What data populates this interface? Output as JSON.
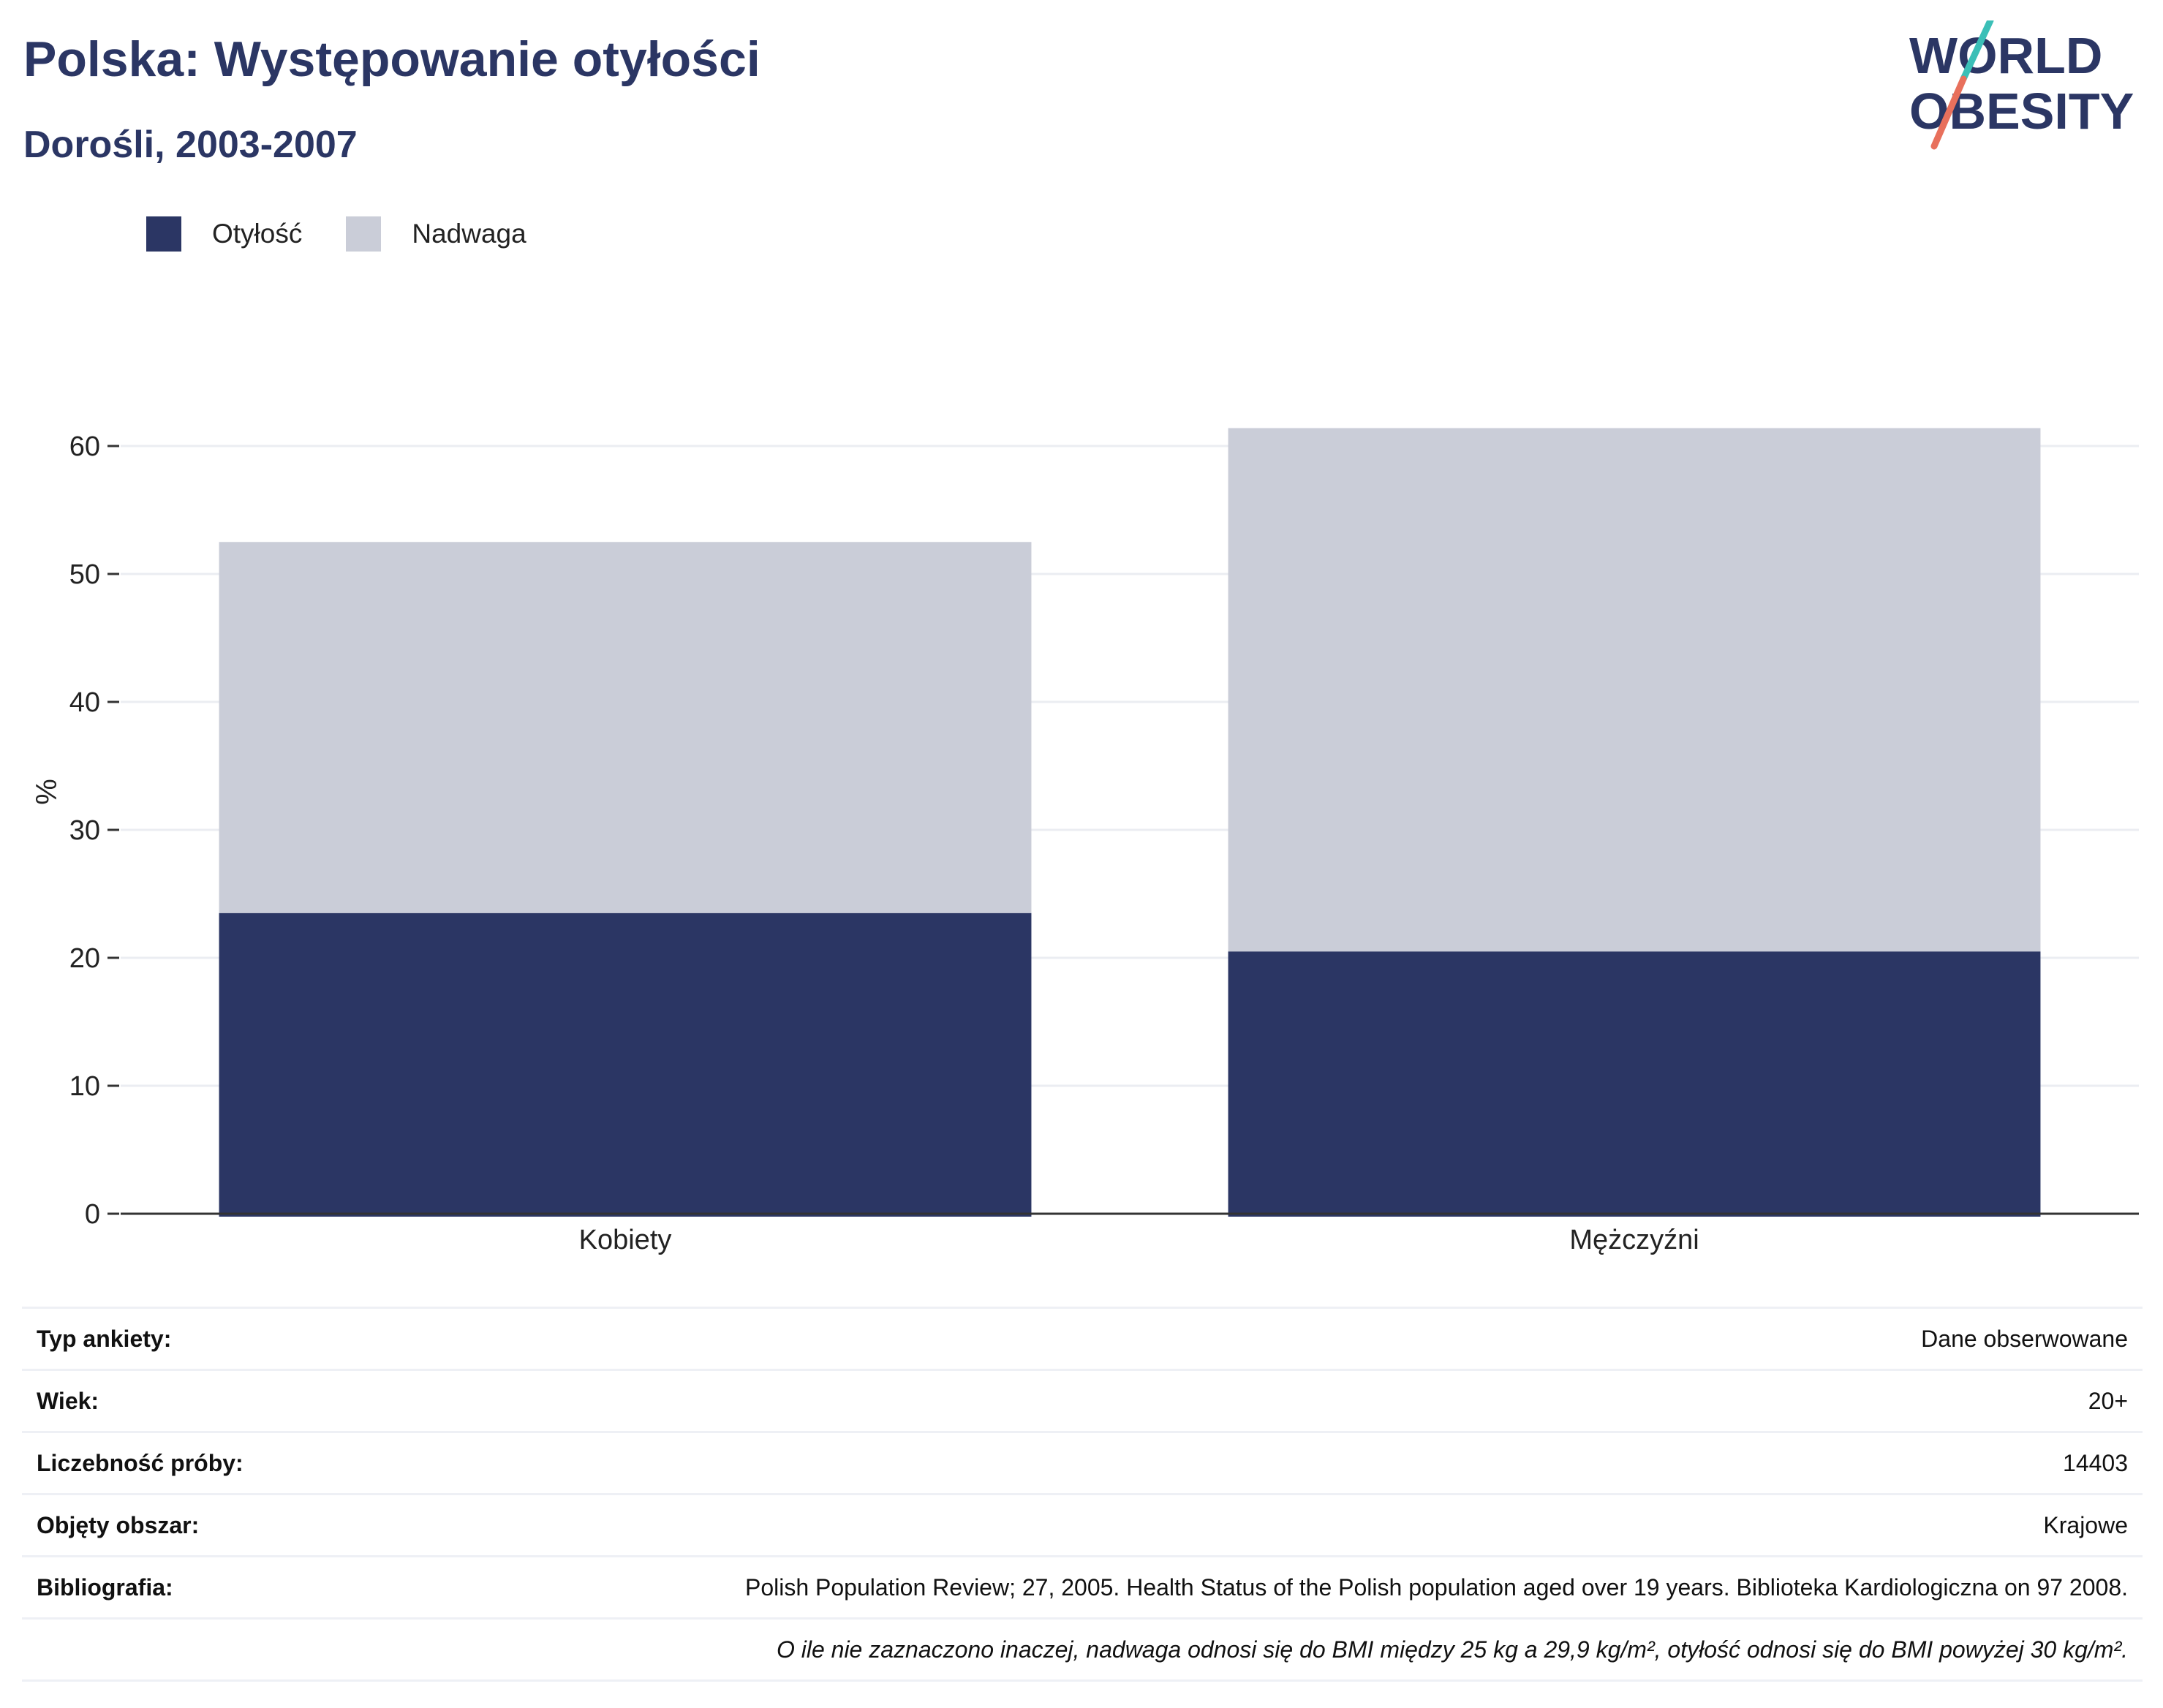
{
  "header": {
    "title": "Polska: Występowanie otyłości",
    "subtitle": "Dorośli, 2003-2007"
  },
  "logo": {
    "line1": "WORLD",
    "line2": "OBESITY",
    "colors": {
      "text": "#2b3664",
      "slash_top": "#3bbfb7",
      "slash_bottom": "#e8705c"
    }
  },
  "legend": {
    "items": [
      {
        "label": "Otyłość",
        "color": "#2b3664"
      },
      {
        "label": "Nadwaga",
        "color": "#cacdd8"
      }
    ]
  },
  "chart_data": {
    "type": "bar",
    "stacked": true,
    "categories": [
      "Kobiety",
      "Mężczyźni"
    ],
    "series": [
      {
        "name": "Otyłość",
        "color": "#2b3664",
        "values": [
          23.5,
          20.5
        ]
      },
      {
        "name": "Nadwaga",
        "color": "#cacdd8",
        "values": [
          29.0,
          40.9
        ]
      }
    ],
    "ylabel": "%",
    "ylim": [
      0,
      64
    ],
    "yticks": [
      0,
      10,
      20,
      30,
      40,
      50,
      60
    ],
    "grid": true,
    "legend_position": "top-left"
  },
  "info_table": {
    "rows": [
      {
        "label": "Typ ankiety:",
        "value": "Dane obserwowane"
      },
      {
        "label": "Wiek:",
        "value": "20+"
      },
      {
        "label": "Liczebność próby:",
        "value": "14403"
      },
      {
        "label": "Objęty obszar:",
        "value": "Krajowe"
      },
      {
        "label": "Bibliografia:",
        "value": "Polish Population Review; 27, 2005. Health Status of the Polish population aged over 19 years. Biblioteka Kardiologiczna on 97 2008."
      }
    ],
    "note": "O ile nie zaznaczono inaczej, nadwaga odnosi się do BMI między 25 kg a 29,9 kg/m², otyłość odnosi się do BMI powyżej 30 kg/m²."
  }
}
